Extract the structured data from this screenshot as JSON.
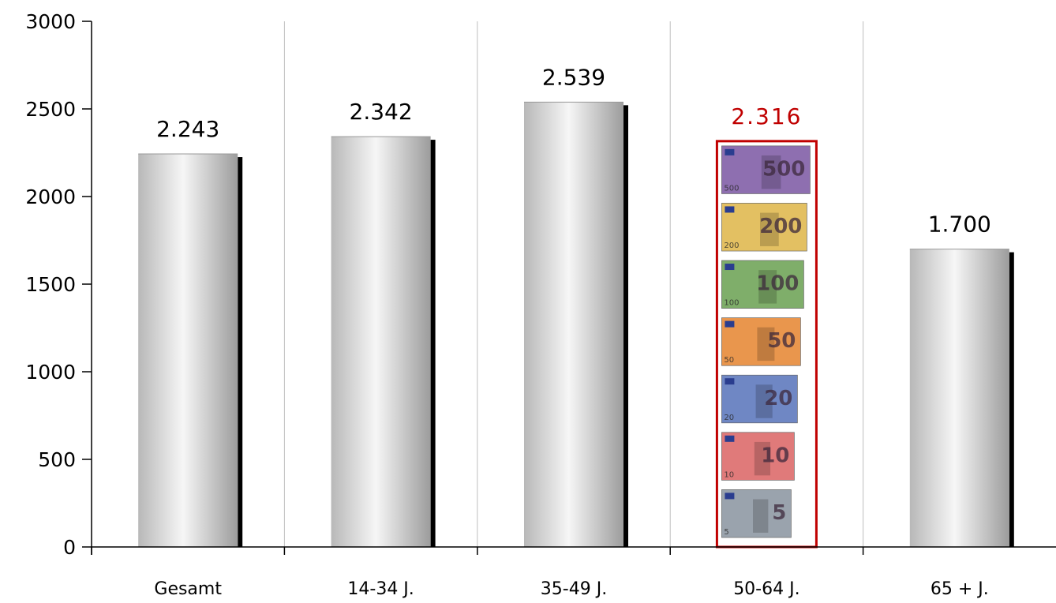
{
  "chart_data": {
    "type": "bar",
    "categories": [
      "Gesamt",
      "14-34 J.",
      "35-49 J.",
      "50-64 J.",
      "65 + J."
    ],
    "values": [
      2243,
      2342,
      2539,
      2316,
      1700
    ],
    "data_labels": [
      "2.243",
      "2.342",
      "2.539",
      "2.316",
      "1.700"
    ],
    "highlight_index": 3,
    "highlight_fill": "banknotes",
    "ylim": [
      0,
      3000
    ],
    "yticks": [
      "0",
      "500",
      "1000",
      "1500",
      "2000",
      "2500",
      "3000"
    ],
    "title": "",
    "xlabel": "",
    "ylabel": "",
    "grid": "vertical separators between categories",
    "legend": "none",
    "banknotes": [
      "500",
      "200",
      "100",
      "50",
      "20",
      "10",
      "5"
    ]
  },
  "colors": {
    "highlight": "#c00000",
    "bar_shadow": "#000000",
    "axis": "#000000",
    "gridline": "#bfbfbf",
    "note_500": "#8e6fb0",
    "note_200": "#e3c062",
    "note_100": "#7fae6a",
    "note_50": "#e9964d",
    "note_20": "#6f87c4",
    "note_10": "#e07a7a",
    "note_5": "#9aa3ad"
  }
}
